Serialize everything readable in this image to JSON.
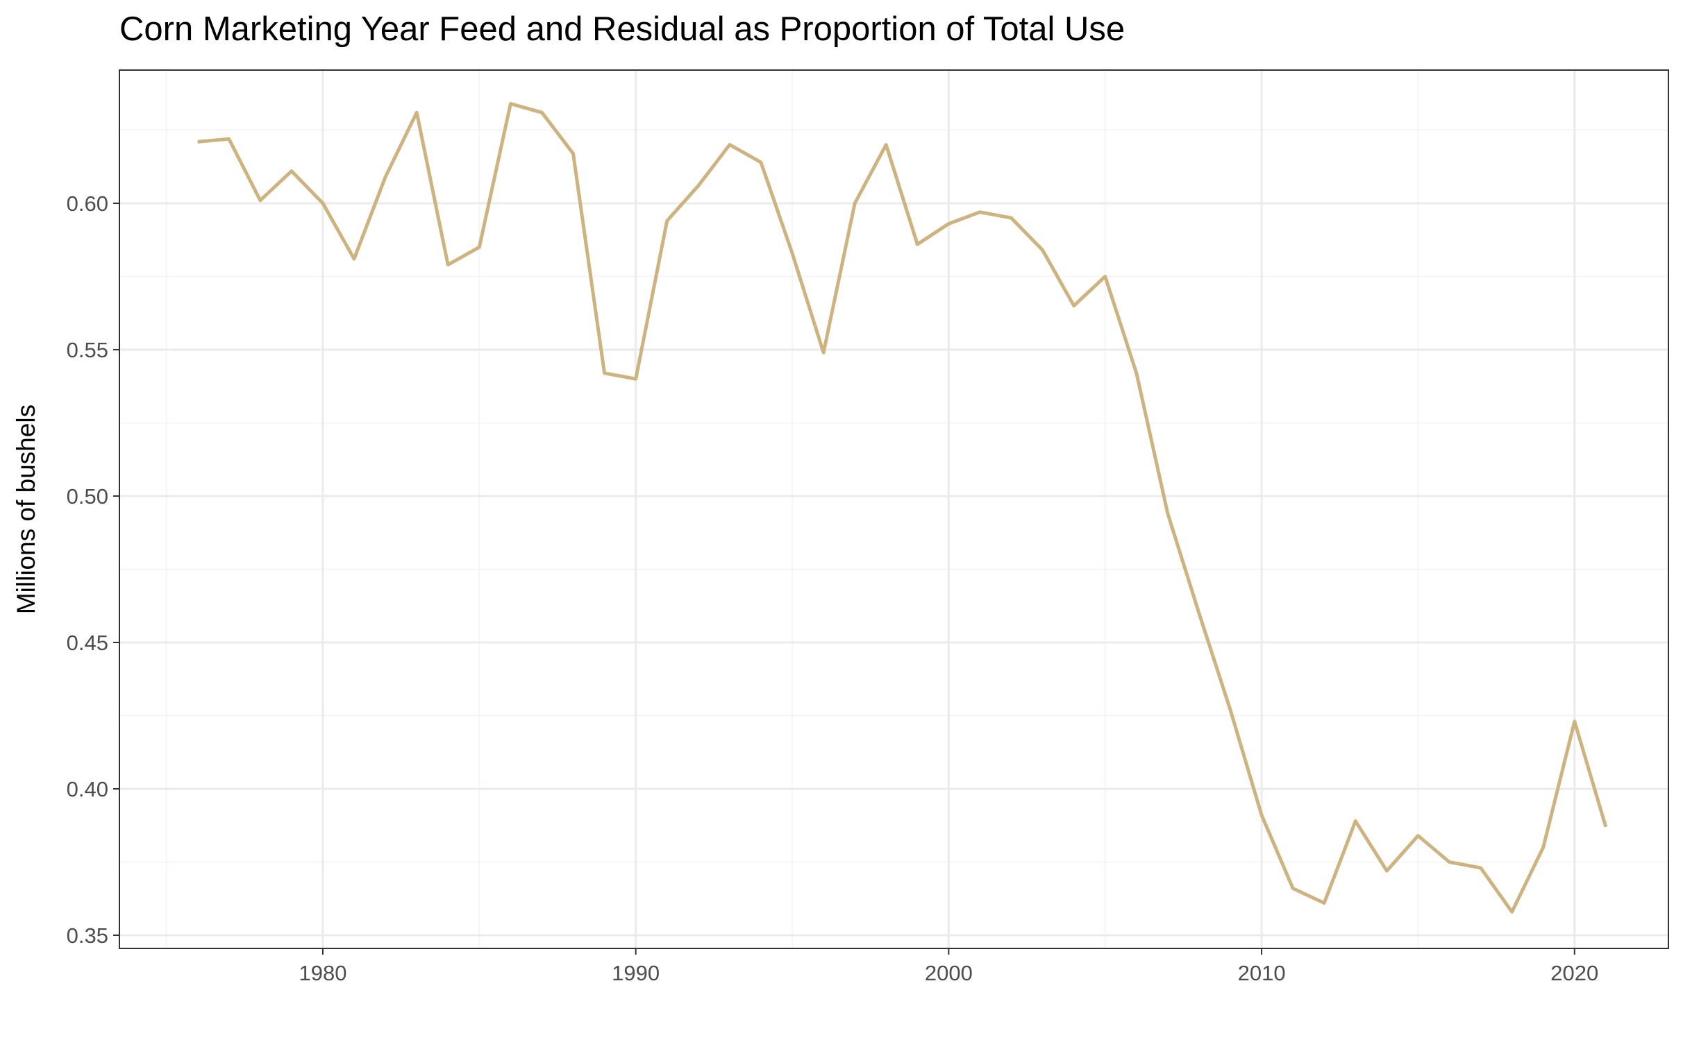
{
  "chart_data": {
    "type": "line",
    "title": "Corn Marketing Year Feed and Residual as Proportion of Total Use",
    "xlabel": "",
    "ylabel": "Millions of bushels",
    "xlim": [
      1973.5,
      2023
    ],
    "ylim": [
      0.3455,
      0.6455
    ],
    "x_ticks": [
      1980,
      1990,
      2000,
      2010,
      2020
    ],
    "x_tick_labels": [
      "1980",
      "1990",
      "2000",
      "2010",
      "2020"
    ],
    "y_ticks": [
      0.35,
      0.4,
      0.45,
      0.5,
      0.55,
      0.6
    ],
    "y_tick_labels": [
      "0.35",
      "0.40",
      "0.45",
      "0.50",
      "0.55",
      "0.60"
    ],
    "grid": true,
    "legend": "none",
    "line_color": "#cdb380",
    "series": [
      {
        "x": [
          1976,
          1977,
          1978,
          1979,
          1980,
          1981,
          1982,
          1983,
          1984,
          1985,
          1986,
          1987,
          1988,
          1989,
          1990,
          1991,
          1992,
          1993,
          1994,
          1995,
          1996,
          1997,
          1998,
          1999,
          2000,
          2001,
          2002,
          2003,
          2004,
          2005,
          2006,
          2007,
          2008,
          2009,
          2010,
          2011,
          2012,
          2013,
          2014,
          2015,
          2016,
          2017,
          2018,
          2019,
          2020,
          2021
        ],
        "values": [
          0.621,
          0.622,
          0.601,
          0.611,
          0.6,
          0.581,
          0.609,
          0.631,
          0.579,
          0.585,
          0.634,
          0.631,
          0.617,
          0.542,
          0.54,
          0.594,
          0.606,
          0.62,
          0.614,
          0.583,
          0.549,
          0.6,
          0.62,
          0.586,
          0.593,
          0.597,
          0.595,
          0.584,
          0.565,
          0.575,
          0.542,
          0.494,
          0.46,
          0.427,
          0.391,
          0.366,
          0.361,
          0.389,
          0.372,
          0.384,
          0.375,
          0.373,
          0.358,
          0.38,
          0.423,
          0.387
        ]
      }
    ]
  }
}
